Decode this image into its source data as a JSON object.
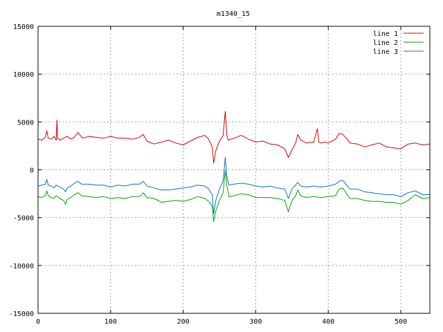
{
  "chart_data": {
    "type": "line",
    "title": "m1340_15",
    "xlabel": "",
    "ylabel": "",
    "xlim": [
      0,
      540
    ],
    "ylim": [
      -15000,
      15000
    ],
    "grid": true,
    "legend_position": "top-right",
    "x_ticks": [
      0,
      100,
      200,
      300,
      400,
      500
    ],
    "y_ticks": [
      -15000,
      -10000,
      -5000,
      0,
      5000,
      10000,
      15000
    ],
    "x_tick_labels": [
      "0",
      "100",
      "200",
      "300",
      "400",
      "500"
    ],
    "y_tick_labels": [
      "-15000",
      "-10000",
      "-5000",
      "0",
      "5000",
      "10000",
      "15000"
    ],
    "series": [
      {
        "name": "line 1",
        "color": "#d00000",
        "points": [
          [
            0,
            3200
          ],
          [
            5,
            3100
          ],
          [
            10,
            3400
          ],
          [
            12,
            4100
          ],
          [
            14,
            3300
          ],
          [
            18,
            3200
          ],
          [
            22,
            3500
          ],
          [
            25,
            3100
          ],
          [
            26,
            5200
          ],
          [
            27,
            3300
          ],
          [
            30,
            3100
          ],
          [
            35,
            3300
          ],
          [
            40,
            3500
          ],
          [
            45,
            3200
          ],
          [
            50,
            3400
          ],
          [
            55,
            3900
          ],
          [
            58,
            3600
          ],
          [
            62,
            3300
          ],
          [
            70,
            3500
          ],
          [
            80,
            3400
          ],
          [
            90,
            3300
          ],
          [
            100,
            3500
          ],
          [
            110,
            3300
          ],
          [
            120,
            3300
          ],
          [
            130,
            3200
          ],
          [
            140,
            3400
          ],
          [
            145,
            3700
          ],
          [
            150,
            3000
          ],
          [
            160,
            2700
          ],
          [
            170,
            2900
          ],
          [
            180,
            3100
          ],
          [
            190,
            2800
          ],
          [
            200,
            2600
          ],
          [
            210,
            3000
          ],
          [
            220,
            3400
          ],
          [
            230,
            3600
          ],
          [
            235,
            3200
          ],
          [
            240,
            2400
          ],
          [
            242,
            700
          ],
          [
            245,
            2000
          ],
          [
            250,
            3000
          ],
          [
            255,
            3600
          ],
          [
            258,
            6100
          ],
          [
            260,
            3700
          ],
          [
            262,
            3100
          ],
          [
            270,
            3300
          ],
          [
            280,
            3600
          ],
          [
            290,
            3200
          ],
          [
            300,
            2900
          ],
          [
            310,
            3000
          ],
          [
            320,
            2700
          ],
          [
            330,
            2600
          ],
          [
            340,
            2200
          ],
          [
            345,
            1300
          ],
          [
            350,
            2100
          ],
          [
            355,
            2800
          ],
          [
            358,
            3700
          ],
          [
            362,
            3100
          ],
          [
            370,
            2800
          ],
          [
            380,
            2900
          ],
          [
            385,
            4300
          ],
          [
            387,
            2900
          ],
          [
            390,
            2800
          ],
          [
            395,
            2900
          ],
          [
            400,
            2800
          ],
          [
            410,
            3200
          ],
          [
            415,
            3800
          ],
          [
            420,
            3700
          ],
          [
            425,
            3300
          ],
          [
            430,
            2800
          ],
          [
            440,
            2700
          ],
          [
            450,
            2400
          ],
          [
            460,
            2600
          ],
          [
            470,
            2800
          ],
          [
            480,
            2400
          ],
          [
            490,
            2300
          ],
          [
            500,
            2200
          ],
          [
            510,
            2700
          ],
          [
            520,
            2800
          ],
          [
            530,
            2600
          ],
          [
            540,
            2700
          ]
        ]
      },
      {
        "name": "line 2",
        "color": "#00a000",
        "points": [
          [
            0,
            -2800
          ],
          [
            5,
            -2900
          ],
          [
            10,
            -2700
          ],
          [
            12,
            -2200
          ],
          [
            14,
            -2700
          ],
          [
            18,
            -2900
          ],
          [
            22,
            -3000
          ],
          [
            25,
            -2700
          ],
          [
            30,
            -3000
          ],
          [
            35,
            -3200
          ],
          [
            38,
            -3600
          ],
          [
            40,
            -3100
          ],
          [
            45,
            -2900
          ],
          [
            50,
            -2600
          ],
          [
            55,
            -2400
          ],
          [
            60,
            -2700
          ],
          [
            70,
            -2800
          ],
          [
            80,
            -2900
          ],
          [
            90,
            -2800
          ],
          [
            100,
            -3000
          ],
          [
            110,
            -2900
          ],
          [
            120,
            -3000
          ],
          [
            130,
            -2800
          ],
          [
            140,
            -2800
          ],
          [
            145,
            -2400
          ],
          [
            150,
            -2900
          ],
          [
            160,
            -3000
          ],
          [
            170,
            -3400
          ],
          [
            180,
            -3300
          ],
          [
            190,
            -3200
          ],
          [
            200,
            -3300
          ],
          [
            210,
            -3100
          ],
          [
            220,
            -2800
          ],
          [
            230,
            -3000
          ],
          [
            235,
            -3300
          ],
          [
            240,
            -3800
          ],
          [
            242,
            -5400
          ],
          [
            245,
            -4300
          ],
          [
            250,
            -3200
          ],
          [
            255,
            -2400
          ],
          [
            258,
            -100
          ],
          [
            260,
            -1500
          ],
          [
            263,
            -2800
          ],
          [
            270,
            -2700
          ],
          [
            280,
            -2500
          ],
          [
            290,
            -2600
          ],
          [
            300,
            -2900
          ],
          [
            310,
            -2900
          ],
          [
            320,
            -2900
          ],
          [
            330,
            -3000
          ],
          [
            340,
            -3200
          ],
          [
            345,
            -4400
          ],
          [
            350,
            -3200
          ],
          [
            355,
            -2700
          ],
          [
            358,
            -2100
          ],
          [
            362,
            -2700
          ],
          [
            370,
            -2900
          ],
          [
            380,
            -2800
          ],
          [
            390,
            -2900
          ],
          [
            400,
            -2800
          ],
          [
            410,
            -2700
          ],
          [
            415,
            -2000
          ],
          [
            420,
            -1900
          ],
          [
            425,
            -2500
          ],
          [
            430,
            -3000
          ],
          [
            440,
            -3000
          ],
          [
            450,
            -3200
          ],
          [
            460,
            -3300
          ],
          [
            470,
            -3300
          ],
          [
            480,
            -3400
          ],
          [
            490,
            -3400
          ],
          [
            500,
            -3600
          ],
          [
            510,
            -3200
          ],
          [
            520,
            -2600
          ],
          [
            530,
            -3000
          ],
          [
            540,
            -2900
          ]
        ]
      },
      {
        "name": "line 3",
        "color": "#0070d0",
        "points": [
          [
            0,
            -1700
          ],
          [
            5,
            -1600
          ],
          [
            10,
            -1500
          ],
          [
            12,
            -1000
          ],
          [
            14,
            -1600
          ],
          [
            18,
            -1700
          ],
          [
            22,
            -1900
          ],
          [
            25,
            -1600
          ],
          [
            30,
            -1800
          ],
          [
            35,
            -2000
          ],
          [
            38,
            -2300
          ],
          [
            40,
            -1900
          ],
          [
            45,
            -1700
          ],
          [
            50,
            -1400
          ],
          [
            55,
            -1200
          ],
          [
            60,
            -1500
          ],
          [
            70,
            -1500
          ],
          [
            80,
            -1600
          ],
          [
            90,
            -1600
          ],
          [
            100,
            -1800
          ],
          [
            110,
            -1600
          ],
          [
            120,
            -1700
          ],
          [
            130,
            -1500
          ],
          [
            140,
            -1500
          ],
          [
            145,
            -1200
          ],
          [
            150,
            -1700
          ],
          [
            160,
            -1900
          ],
          [
            170,
            -2100
          ],
          [
            180,
            -2100
          ],
          [
            190,
            -2000
          ],
          [
            200,
            -1900
          ],
          [
            210,
            -1800
          ],
          [
            220,
            -1600
          ],
          [
            230,
            -1700
          ],
          [
            235,
            -2000
          ],
          [
            240,
            -2600
          ],
          [
            242,
            -4600
          ],
          [
            245,
            -3200
          ],
          [
            250,
            -2000
          ],
          [
            255,
            -1200
          ],
          [
            258,
            1300
          ],
          [
            260,
            -600
          ],
          [
            263,
            -1600
          ],
          [
            270,
            -1500
          ],
          [
            280,
            -1400
          ],
          [
            290,
            -1500
          ],
          [
            300,
            -1700
          ],
          [
            310,
            -1800
          ],
          [
            320,
            -1700
          ],
          [
            330,
            -1900
          ],
          [
            340,
            -2000
          ],
          [
            345,
            -3000
          ],
          [
            350,
            -2000
          ],
          [
            355,
            -1600
          ],
          [
            358,
            -1300
          ],
          [
            362,
            -1700
          ],
          [
            370,
            -1800
          ],
          [
            380,
            -1700
          ],
          [
            390,
            -1800
          ],
          [
            400,
            -1700
          ],
          [
            410,
            -1500
          ],
          [
            415,
            -1200
          ],
          [
            420,
            -1100
          ],
          [
            425,
            -1600
          ],
          [
            430,
            -2000
          ],
          [
            440,
            -2000
          ],
          [
            450,
            -2300
          ],
          [
            460,
            -2400
          ],
          [
            470,
            -2500
          ],
          [
            480,
            -2600
          ],
          [
            490,
            -2600
          ],
          [
            500,
            -2800
          ],
          [
            510,
            -2400
          ],
          [
            520,
            -2200
          ],
          [
            530,
            -2600
          ],
          [
            540,
            -2600
          ]
        ]
      }
    ]
  }
}
